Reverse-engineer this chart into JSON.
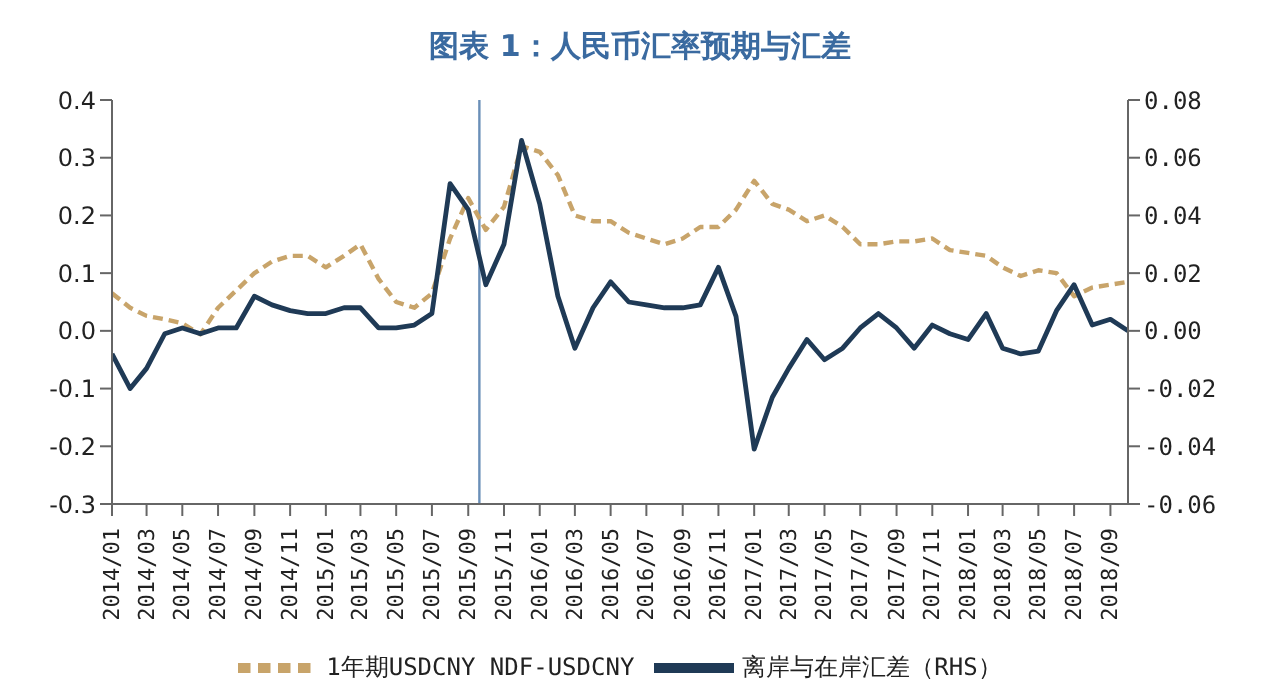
{
  "chart_data": {
    "type": "line",
    "title": "图表 1：人民币汇率预期与汇差",
    "x": [
      "2014-01",
      "2014-02",
      "2014-03",
      "2014-04",
      "2014-05",
      "2014-06",
      "2014-07",
      "2014-08",
      "2014-09",
      "2014-10",
      "2014-11",
      "2014-12",
      "2015-01",
      "2015-02",
      "2015-03",
      "2015-04",
      "2015-05",
      "2015-06",
      "2015-07",
      "2015-08",
      "2015-09",
      "2015-10",
      "2015-11",
      "2015-12",
      "2016-01",
      "2016-02",
      "2016-03",
      "2016-04",
      "2016-05",
      "2016-06",
      "2016-07",
      "2016-08",
      "2016-09",
      "2016-10",
      "2016-11",
      "2016-12",
      "2017-01",
      "2017-02",
      "2017-03",
      "2017-04",
      "2017-05",
      "2017-06",
      "2017-07",
      "2017-08",
      "2017-09",
      "2017-10",
      "2017-11",
      "2017-12",
      "2018-01",
      "2018-02",
      "2018-03",
      "2018-04",
      "2018-05",
      "2018-06",
      "2018-07",
      "2018-08",
      "2018-09",
      "2018-10"
    ],
    "series": [
      {
        "name": "1年期USDCNY NDF-USDCNY",
        "color": "#c8a46a",
        "line_style": "dashed",
        "values": [
          0.065,
          0.04,
          0.026,
          0.02,
          0.013,
          -0.006,
          0.04,
          0.07,
          0.1,
          0.12,
          0.13,
          0.13,
          0.11,
          0.13,
          0.15,
          0.09,
          0.05,
          0.04,
          0.065,
          0.16,
          0.23,
          0.175,
          0.215,
          0.32,
          0.31,
          0.27,
          0.2,
          0.19,
          0.19,
          0.17,
          0.16,
          0.15,
          0.16,
          0.18,
          0.18,
          0.21,
          0.26,
          0.22,
          0.21,
          0.19,
          0.2,
          0.18,
          0.15,
          0.15,
          0.155,
          0.155,
          0.16,
          0.14,
          0.135,
          0.13,
          0.11,
          0.095,
          0.105,
          0.1,
          0.06,
          0.075,
          0.08,
          0.085
        ]
      },
      {
        "name": "离岸与在岸汇差（RHS）",
        "color": "#1f3a56",
        "line_style": "solid",
        "axis": "y2",
        "values": [
          -0.008,
          -0.02,
          -0.013,
          -0.001,
          0.001,
          -0.001,
          0.001,
          0.001,
          0.012,
          0.009,
          0.007,
          0.006,
          0.006,
          0.008,
          0.008,
          0.001,
          0.001,
          0.002,
          0.006,
          0.051,
          0.042,
          0.016,
          0.03,
          0.066,
          0.044,
          0.012,
          -0.006,
          0.008,
          0.017,
          0.01,
          0.009,
          0.008,
          0.008,
          0.009,
          0.022,
          0.005,
          -0.041,
          -0.023,
          -0.013,
          -0.003,
          -0.01,
          -0.006,
          0.001,
          0.006,
          0.001,
          -0.006,
          0.002,
          -0.001,
          -0.003,
          0.006,
          -0.006,
          -0.008,
          -0.007,
          0.007,
          0.016,
          0.002,
          0.004,
          0.0
        ]
      }
    ],
    "ylim": [
      -0.3,
      0.4
    ],
    "yticks": [
      {
        "value": 0.4,
        "label": "0.4"
      },
      {
        "value": 0.3,
        "label": "0.3"
      },
      {
        "value": 0.2,
        "label": "0.2"
      },
      {
        "value": 0.1,
        "label": "0.1"
      },
      {
        "value": 0,
        "label": "0.0"
      },
      {
        "value": -0.1,
        "label": "-0.1"
      },
      {
        "value": -0.2,
        "label": "-0.2"
      },
      {
        "value": -0.3,
        "label": "-0.3"
      }
    ],
    "y2lim": [
      -0.06,
      0.08
    ],
    "y2ticks": [
      {
        "value": 0.08,
        "label": "0.08"
      },
      {
        "value": 0.06,
        "label": "0.06"
      },
      {
        "value": 0.04,
        "label": "0.04"
      },
      {
        "value": 0.02,
        "label": "0.02"
      },
      {
        "value": 0,
        "label": "0.00"
      },
      {
        "value": -0.02,
        "label": "-0.02"
      },
      {
        "value": -0.04,
        "label": "-0.04"
      },
      {
        "value": -0.06,
        "label": "-0.06"
      }
    ],
    "xlim": [
      "2014-01",
      "2018-10"
    ],
    "xticks": [
      {
        "value": "2014-01",
        "label": "2014/01"
      },
      {
        "value": "2014-03",
        "label": "2014/03"
      },
      {
        "value": "2014-05",
        "label": "2014/05"
      },
      {
        "value": "2014-07",
        "label": "2014/07"
      },
      {
        "value": "2014-09",
        "label": "2014/09"
      },
      {
        "value": "2014-11",
        "label": "2014/11"
      },
      {
        "value": "2015-01",
        "label": "2015/01"
      },
      {
        "value": "2015-03",
        "label": "2015/03"
      },
      {
        "value": "2015-05",
        "label": "2015/05"
      },
      {
        "value": "2015-07",
        "label": "2015/07"
      },
      {
        "value": "2015-09",
        "label": "2015/09"
      },
      {
        "value": "2015-11",
        "label": "2015/11"
      },
      {
        "value": "2016-01",
        "label": "2016/01"
      },
      {
        "value": "2016-03",
        "label": "2016/03"
      },
      {
        "value": "2016-05",
        "label": "2016/05"
      },
      {
        "value": "2016-07",
        "label": "2016/07"
      },
      {
        "value": "2016-09",
        "label": "2016/09"
      },
      {
        "value": "2016-11",
        "label": "2016/11"
      },
      {
        "value": "2017-01",
        "label": "2017/01"
      },
      {
        "value": "2017-03",
        "label": "2017/03"
      },
      {
        "value": "2017-05",
        "label": "2017/05"
      },
      {
        "value": "2017-07",
        "label": "2017/07"
      },
      {
        "value": "2017-09",
        "label": "2017/09"
      },
      {
        "value": "2017-11",
        "label": "2017/11"
      },
      {
        "value": "2018-01",
        "label": "2018/01"
      },
      {
        "value": "2018-03",
        "label": "2018/03"
      },
      {
        "value": "2018-05",
        "label": "2018/05"
      },
      {
        "value": "2018-07",
        "label": "2018/07"
      },
      {
        "value": "2018-09",
        "label": "2018/09"
      }
    ],
    "ref_lines": [
      {
        "axis": "x",
        "value": "2015-09-20",
        "color": "#6a8fb8"
      }
    ],
    "grid": false,
    "legend": "bottom",
    "marker": "none"
  }
}
